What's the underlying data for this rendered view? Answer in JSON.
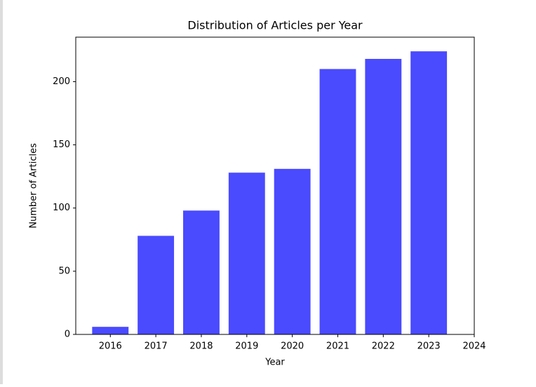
{
  "chart_data": {
    "type": "bar",
    "title": "Distribution of Articles per Year",
    "x_label": "Year",
    "y_label": "Number of Articles",
    "x": [
      2016,
      2017,
      2018,
      2019,
      2020,
      2021,
      2022,
      2023
    ],
    "values": [
      6,
      78,
      98,
      128,
      131,
      210,
      218,
      224
    ],
    "color": "#4a4aff",
    "xlim": [
      2015.24,
      2024
    ],
    "xticks": [
      2016,
      2017,
      2018,
      2019,
      2020,
      2021,
      2022,
      2023,
      2024
    ],
    "ylim": [
      0,
      235.2
    ],
    "yticks": [
      0,
      50,
      100,
      150,
      200
    ]
  }
}
